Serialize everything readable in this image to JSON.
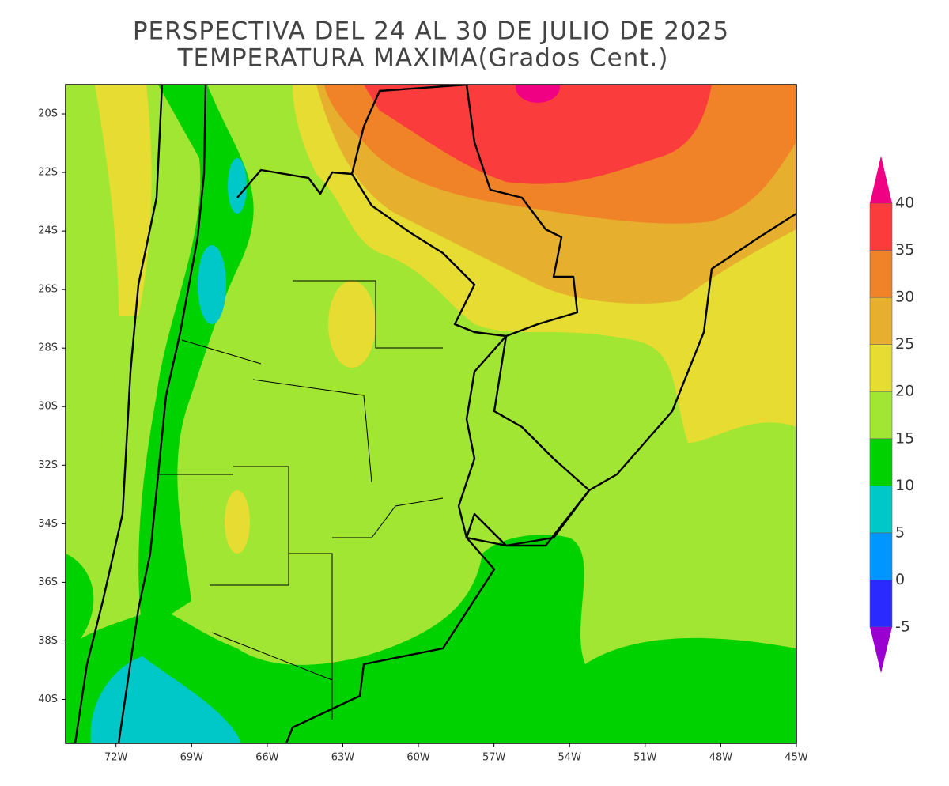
{
  "header": {
    "title": [
      "PERSPECTIVA DEL 24 AL 30 DE JULIO DE 2025",
      "TEMPERATURA MAXIMA(Grados Cent.)"
    ]
  },
  "map": {
    "xlim": [
      -74,
      -45
    ],
    "ylim": [
      -41.5,
      -19
    ],
    "xticks": [
      {
        "value": -72,
        "label": "72W"
      },
      {
        "value": -69,
        "label": "69W"
      },
      {
        "value": -66,
        "label": "66W"
      },
      {
        "value": -63,
        "label": "63W"
      },
      {
        "value": -60,
        "label": "60W"
      },
      {
        "value": -57,
        "label": "57W"
      },
      {
        "value": -54,
        "label": "54W"
      },
      {
        "value": -51,
        "label": "51W"
      },
      {
        "value": -48,
        "label": "48W"
      },
      {
        "value": -45,
        "label": "45W"
      }
    ],
    "yticks": [
      {
        "value": -20,
        "label": "20S"
      },
      {
        "value": -22,
        "label": "22S"
      },
      {
        "value": -24,
        "label": "24S"
      },
      {
        "value": -26,
        "label": "26S"
      },
      {
        "value": -28,
        "label": "28S"
      },
      {
        "value": -30,
        "label": "30S"
      },
      {
        "value": -32,
        "label": "32S"
      },
      {
        "value": -34,
        "label": "34S"
      },
      {
        "value": -36,
        "label": "36S"
      },
      {
        "value": -38,
        "label": "38S"
      },
      {
        "value": -40,
        "label": "40S"
      }
    ]
  },
  "colorbar": {
    "levels": [
      -5,
      0,
      5,
      10,
      15,
      20,
      25,
      30,
      35,
      40
    ],
    "colors": [
      "#9a00d0",
      "#2a2aff",
      "#0096ff",
      "#00c8c8",
      "#00d200",
      "#a0e632",
      "#e6dc32",
      "#e6af2d",
      "#f08228",
      "#fa3c3c",
      "#f00082"
    ]
  }
}
